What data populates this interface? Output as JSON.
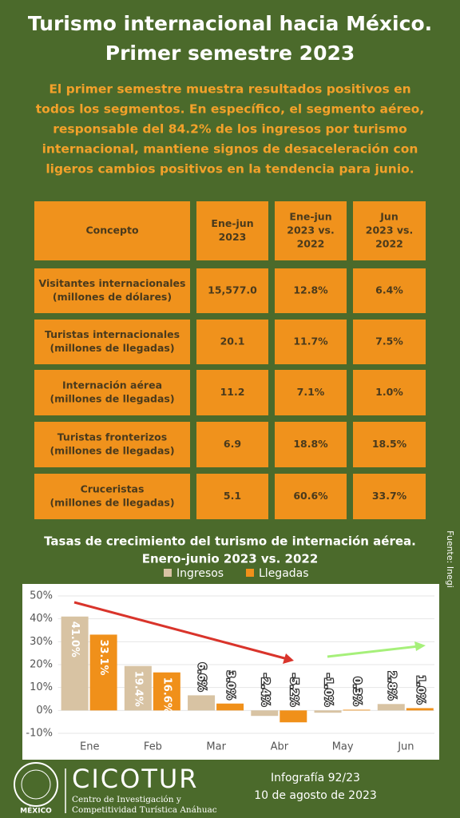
{
  "header": {
    "title": [
      "Turismo internacional hacia México.",
      "Primer semestre 2023"
    ],
    "intro": [
      "El primer semestre muestra resultados positivos en",
      "todos los segmentos. En específico, el segmento aéreo,",
      "responsable del 84.2% de los ingresos por turismo",
      "internacional, mantiene signos de desaceleración con",
      "ligeros cambios positivos en la tendencia para junio."
    ]
  },
  "table": {
    "columns": [
      [
        "Concepto"
      ],
      [
        "Ene-jun",
        "2023"
      ],
      [
        "Ene-jun",
        "2023 vs.",
        "2022"
      ],
      [
        "Jun",
        "2023 vs.",
        "2022"
      ]
    ],
    "rows": [
      [
        [
          "Visitantes internacionales",
          "(millones de dólares)"
        ],
        [
          "15,577.0"
        ],
        [
          "12.8%"
        ],
        [
          "6.4%"
        ]
      ],
      [
        [
          "Turistas internacionales",
          "(millones de llegadas)"
        ],
        [
          "20.1"
        ],
        [
          "11.7%"
        ],
        [
          "7.5%"
        ]
      ],
      [
        [
          "Internación aérea",
          "(millones de llegadas)"
        ],
        [
          "11.2"
        ],
        [
          "7.1%"
        ],
        [
          "1.0%"
        ]
      ],
      [
        [
          "Turistas fronterizos",
          "(millones de llegadas)"
        ],
        [
          "6.9"
        ],
        [
          "18.8%"
        ],
        [
          "18.5%"
        ]
      ],
      [
        [
          "Cruceristas",
          "(millones de llegadas)"
        ],
        [
          "5.1"
        ],
        [
          "60.6%"
        ],
        [
          "33.7%"
        ]
      ]
    ]
  },
  "chart_data": {
    "type": "bar",
    "title": [
      "Tasas de crecimiento del turismo de internación aérea.",
      "Enero-junio 2023 vs. 2022"
    ],
    "source": "Fuente: Inegi",
    "categories": [
      "Ene",
      "Feb",
      "Mar",
      "Abr",
      "May",
      "Jun"
    ],
    "series": [
      {
        "name": "Ingresos",
        "color": "#d8c3a3",
        "values": [
          41.0,
          19.4,
          6.6,
          -2.4,
          -1.0,
          2.8
        ],
        "value_labels": [
          "41.0%",
          "19.4%",
          "6.6%",
          "-2.4%",
          "-1.0%",
          "2.8%"
        ]
      },
      {
        "name": "Llegadas",
        "color": "#f0901a",
        "values": [
          33.1,
          16.6,
          3.0,
          -5.2,
          0.3,
          1.0
        ],
        "value_labels": [
          "33.1%",
          "16.6%",
          "3.0%",
          "-5.2%",
          "0.3%",
          "1.0%"
        ]
      }
    ],
    "ylim": [
      -10,
      50
    ],
    "yticks": [
      {
        "value": -10,
        "label": "-10%"
      },
      {
        "value": 0,
        "label": "0%"
      },
      {
        "value": 10,
        "label": "10%"
      },
      {
        "value": 20,
        "label": "20%"
      },
      {
        "value": 30,
        "label": "30%"
      },
      {
        "value": 40,
        "label": "40%"
      },
      {
        "value": 50,
        "label": "50%"
      }
    ],
    "grid": true,
    "legend": "top"
  },
  "footer": {
    "seal": "MÉXICO",
    "brand": "CICOTUR",
    "brand_lines": [
      "Centro de Investigación y",
      "Competitividad Turística Anáhuac"
    ],
    "info": [
      "Infografía 92/23",
      "10 de agosto de 2023"
    ]
  }
}
